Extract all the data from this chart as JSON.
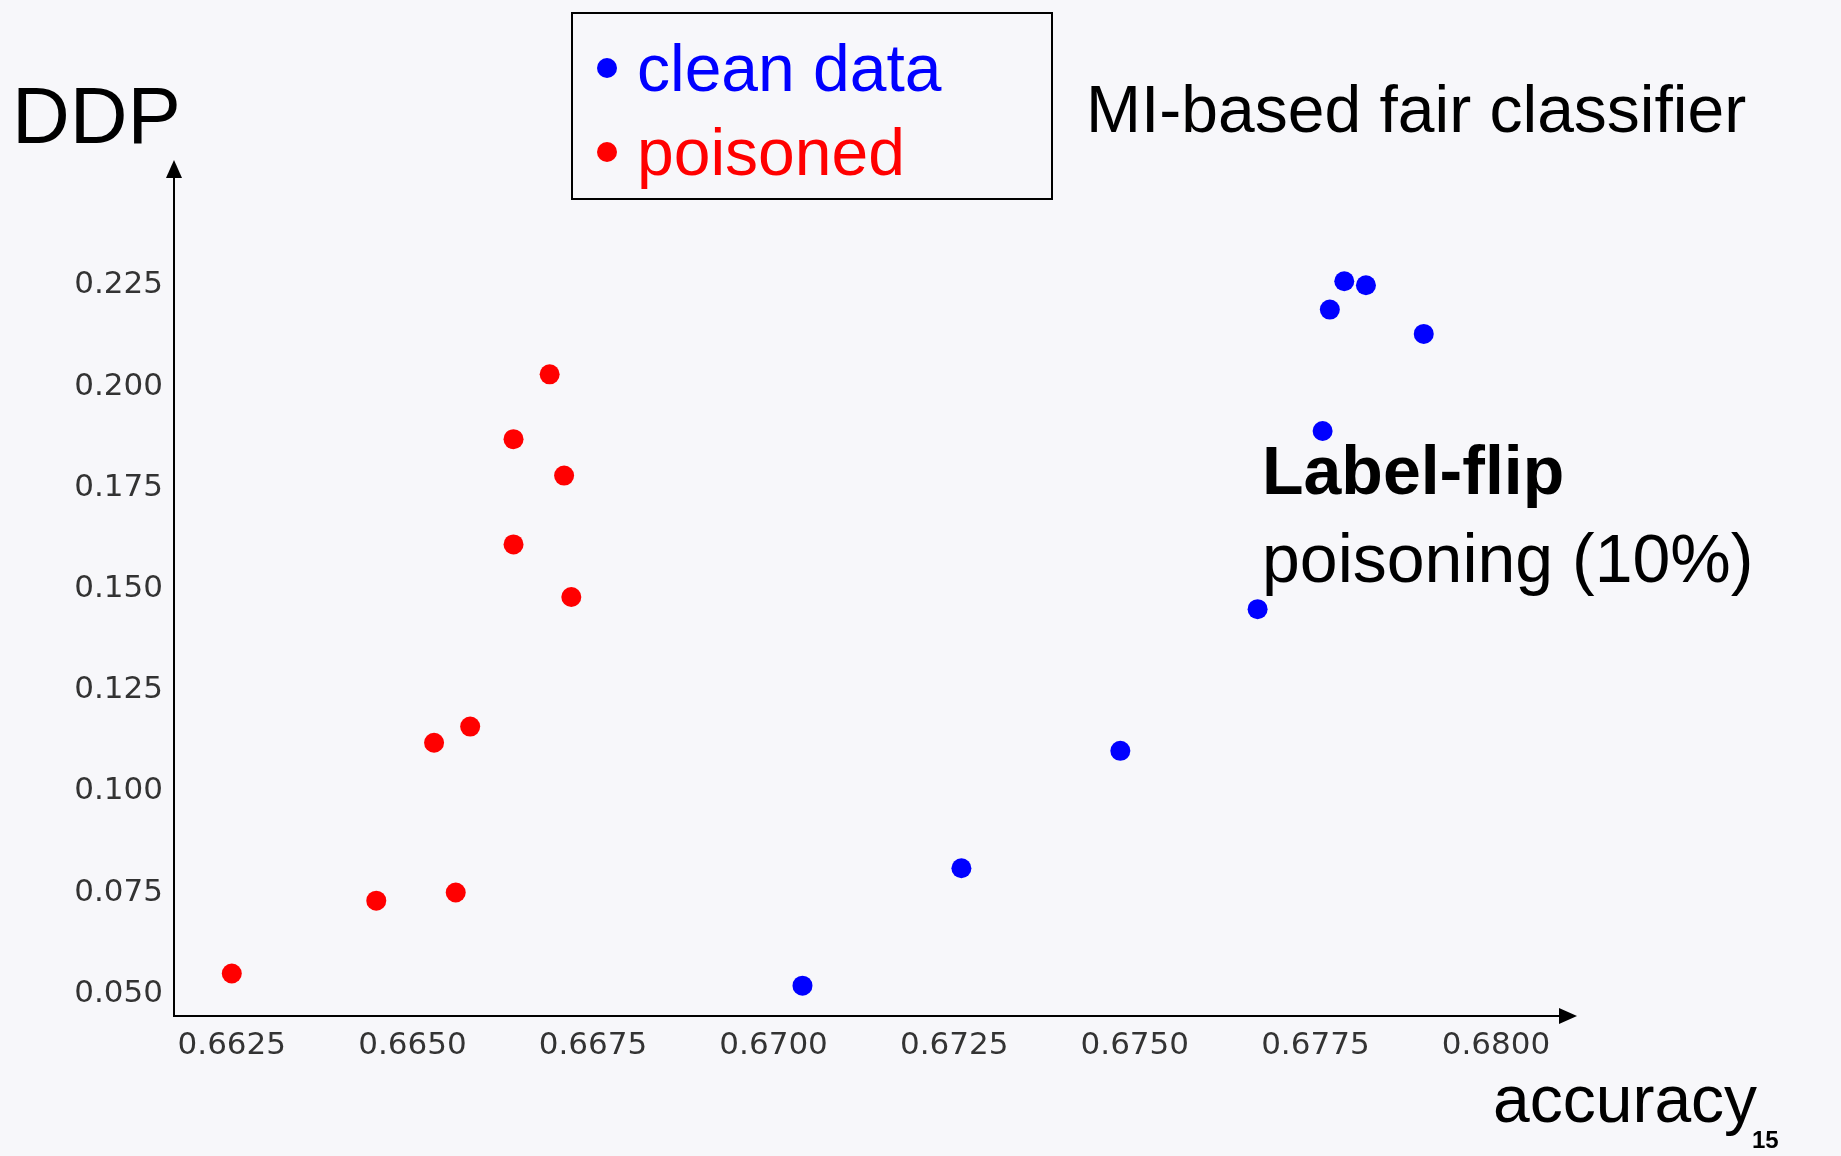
{
  "chart_data": {
    "type": "scatter",
    "title": "MI-based fair classifier",
    "xlabel": "accuracy",
    "ylabel": "DDP",
    "annotations": [
      "Label-flip",
      "poisoning (10%)",
      "15"
    ],
    "series": [
      {
        "name": "clean data",
        "color": "#0000ff",
        "x": [
          0.6704,
          0.6726,
          0.6748,
          0.6767,
          0.6776,
          0.6777,
          0.6779,
          0.6782,
          0.679
        ],
        "values": [
          0.052,
          0.081,
          0.11,
          0.145,
          0.189,
          0.219,
          0.226,
          0.225,
          0.213
        ]
      },
      {
        "name": "poisoned",
        "color": "#ff0000",
        "x": [
          0.6625,
          0.6645,
          0.6656,
          0.6653,
          0.6658,
          0.6664,
          0.6672,
          0.6664,
          0.6671,
          0.6669
        ],
        "values": [
          0.055,
          0.073,
          0.075,
          0.112,
          0.116,
          0.161,
          0.148,
          0.187,
          0.178,
          0.203
        ]
      }
    ],
    "xlim": [
      0.6617,
      0.6809
    ],
    "ylim": [
      0.0445,
      0.252
    ],
    "xticks": [
      0.6625,
      {
        "value": 0.665,
        "label": "0.6650"
      },
      0.6675,
      {
        "value": 0.67,
        "label": "0.6700"
      },
      0.6725,
      {
        "value": 0.675,
        "label": "0.6750"
      },
      0.6775,
      {
        "value": 0.68,
        "label": "0.6800"
      }
    ],
    "yticks": [
      {
        "value": 0.05,
        "label": "0.050"
      },
      0.075,
      {
        "value": 0.1,
        "label": "0.100"
      },
      0.125,
      {
        "value": 0.15,
        "label": "0.150"
      },
      0.175,
      {
        "value": 0.2,
        "label": "0.200"
      },
      0.225
    ],
    "grid": false,
    "legend": "top",
    "marker": "circle"
  }
}
